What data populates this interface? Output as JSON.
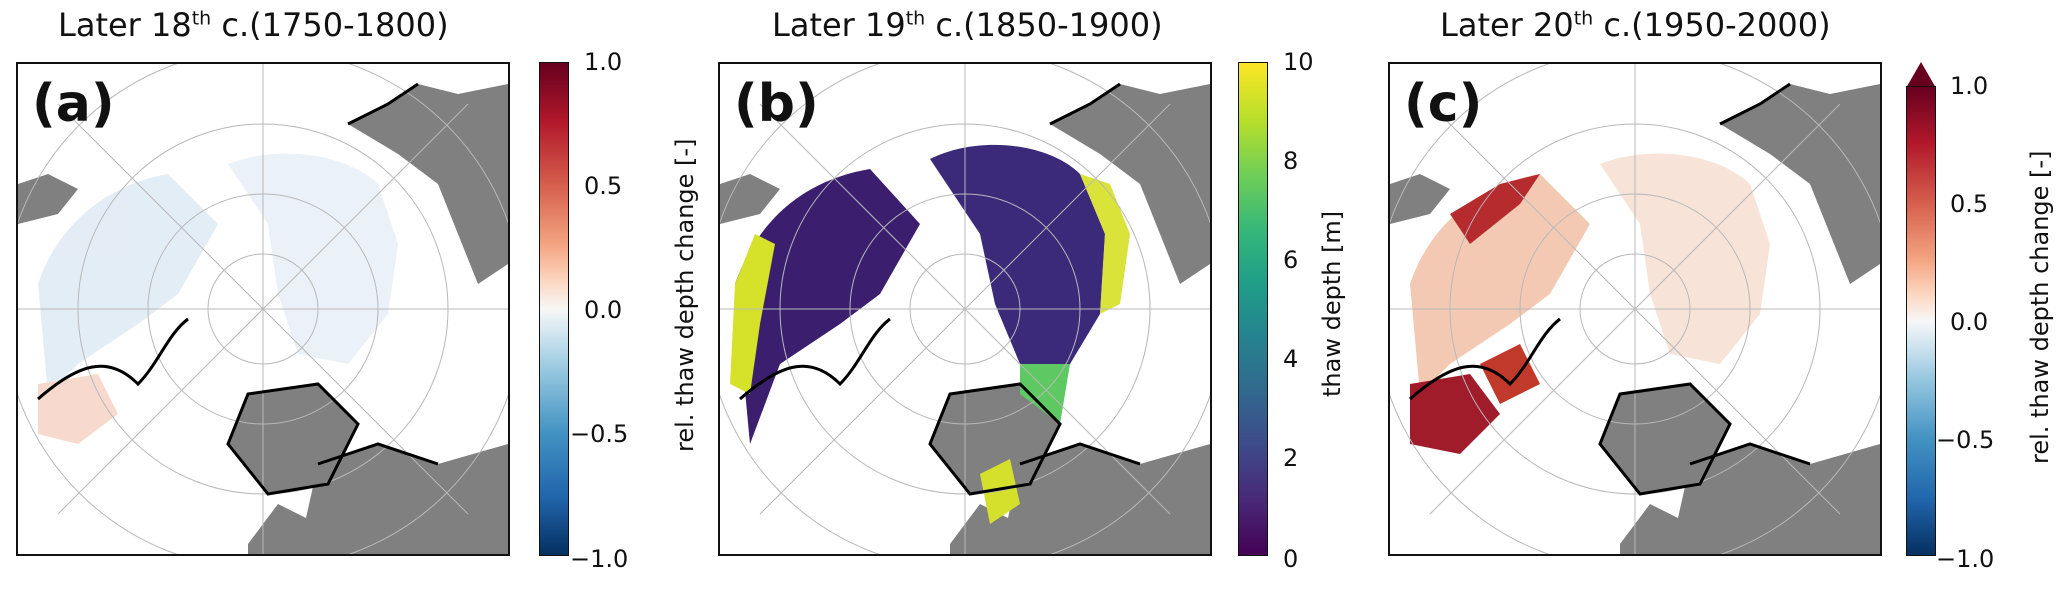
{
  "panels": [
    {
      "title_prefix": "Later 18",
      "title_sup": "th",
      "title_suffix": " c.(1750-1800)",
      "letter": "(a)",
      "colorbar": {
        "colormap": "RdBu_r",
        "label": "rel. thaw depth change [-]",
        "ticks": [
          "1.0",
          "0.5",
          "0.0",
          "−0.5",
          "−1.0"
        ],
        "extend_max": false
      }
    },
    {
      "title_prefix": "Later 19",
      "title_sup": "th",
      "title_suffix": " c.(1850-1900)",
      "letter": "(b)",
      "colorbar": {
        "colormap": "viridis",
        "label": "thaw depth [m]",
        "ticks": [
          "10",
          "8",
          "6",
          "4",
          "2",
          "0"
        ],
        "extend_max": false
      }
    },
    {
      "title_prefix": "Later 20",
      "title_sup": "th",
      "title_suffix": " c.(1950-2000)",
      "letter": "(c)",
      "colorbar": {
        "colormap": "RdBu_r",
        "label": "rel. thaw depth change [-]",
        "ticks": [
          "1.0",
          "0.5",
          "0.0",
          "−0.5",
          "−1.0"
        ],
        "extend_max": true
      }
    }
  ],
  "colors": {
    "land_gray": "#808080",
    "coast": "#000000",
    "graticule": "#b8b8b8"
  }
}
